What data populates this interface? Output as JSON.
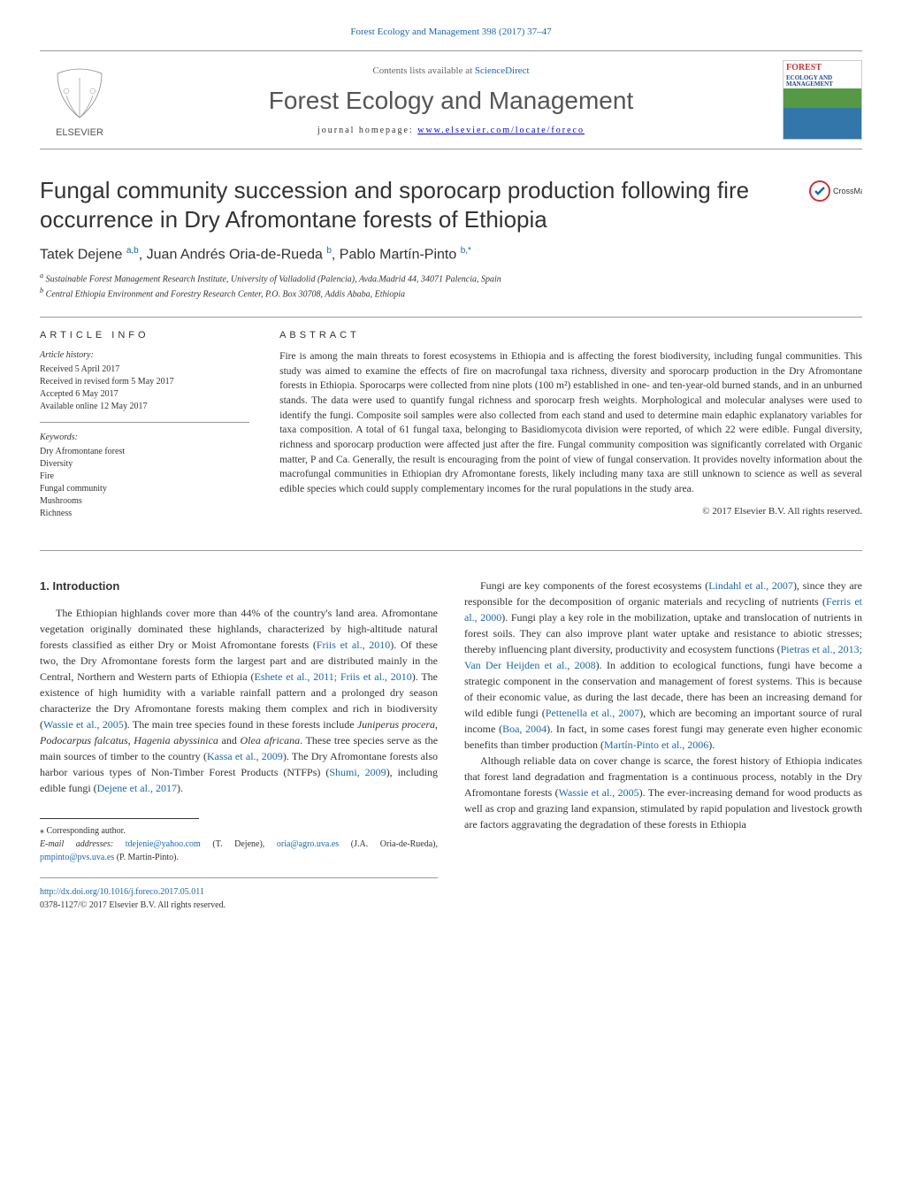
{
  "header": {
    "citation": "Forest Ecology and Management 398 (2017) 37–47",
    "contents_prefix": "Contents lists available at ",
    "contents_link": "ScienceDirect",
    "journal": "Forest Ecology and Management",
    "homepage_label": "journal homepage: ",
    "homepage_url": "www.elsevier.com/locate/foreco",
    "elsevier_text": "ELSEVIER",
    "cover_title": "FOREST",
    "cover_sub1": "ECOLOGY AND",
    "cover_sub2": "MANAGEMENT"
  },
  "crossmark": "CrossMark",
  "article": {
    "title": "Fungal community succession and sporocarp production following fire occurrence in Dry Afromontane forests of Ethiopia",
    "authors_html": "Tatek Dejene <sup>a,b</sup>, Juan Andrés Oria-de-Rueda <sup>b</sup>, Pablo Martín-Pinto <sup>b,*</sup>",
    "affiliations": [
      "a Sustainable Forest Management Research Institute, University of Valladolid (Palencia), Avda.Madrid 44, 34071 Palencia, Spain",
      "b Central Ethiopia Environment and Forestry Research Center, P.O. Box 30708, Addis Ababa, Ethiopia"
    ]
  },
  "info": {
    "heading_info": "ARTICLE INFO",
    "heading_abstract": "ABSTRACT",
    "history_label": "Article history:",
    "history": [
      "Received 5 April 2017",
      "Received in revised form 5 May 2017",
      "Accepted 6 May 2017",
      "Available online 12 May 2017"
    ],
    "keywords_label": "Keywords:",
    "keywords": [
      "Dry Afromontane forest",
      "Diversity",
      "Fire",
      "Fungal community",
      "Mushrooms",
      "Richness"
    ]
  },
  "abstract": {
    "text": "Fire is among the main threats to forest ecosystems in Ethiopia and is affecting the forest biodiversity, including fungal communities. This study was aimed to examine the effects of fire on macrofungal taxa richness, diversity and sporocarp production in the Dry Afromontane forests in Ethiopia. Sporocarps were collected from nine plots (100 m²) established in one- and ten-year-old burned stands, and in an unburned stands. The data were used to quantify fungal richness and sporocarp fresh weights. Morphological and molecular analyses were used to identify the fungi. Composite soil samples were also collected from each stand and used to determine main edaphic explanatory variables for taxa composition. A total of 61 fungal taxa, belonging to Basidiomycota division were reported, of which 22 were edible. Fungal diversity, richness and sporocarp production were affected just after the fire. Fungal community composition was significantly correlated with Organic matter, P and Ca. Generally, the result is encouraging from the point of view of fungal conservation. It provides novelty information about the macrofungal communities in Ethiopian dry Afromontane forests, likely including many taxa are still unknown to science as well as several edible species which could supply complementary incomes for the rural populations in the study area.",
    "copyright": "© 2017 Elsevier B.V. All rights reserved."
  },
  "body": {
    "section_title": "1. Introduction",
    "left_p1": "The Ethiopian highlands cover more than 44% of the country's land area. Afromontane vegetation originally dominated these highlands, characterized by high-altitude natural forests classified as either Dry or Moist Afromontane forests (Friis et al., 2010). Of these two, the Dry Afromontane forests form the largest part and are distributed mainly in the Central, Northern and Western parts of Ethiopia (Eshete et al., 2011; Friis et al., 2010). The existence of high humidity with a variable rainfall pattern and a prolonged dry season characterize the Dry Afromontane forests making them complex and rich in biodiversity (Wassie et al., 2005). The main tree species found in these forests include Juniperus procera, Podocarpus falcatus, Hagenia abyssinica and Olea africana. These tree species serve as the main sources of timber to the country (Kassa et al., 2009). The Dry Afromontane forests also harbor various types of Non-Timber Forest Products (NTFPs) (Shumi, 2009), including edible fungi (Dejene et al., 2017).",
    "right_p1": "Fungi are key components of the forest ecosystems (Lindahl et al., 2007), since they are responsible for the decomposition of organic materials and recycling of nutrients (Ferris et al., 2000). Fungi play a key role in the mobilization, uptake and translocation of nutrients in forest soils. They can also improve plant water uptake and resistance to abiotic stresses; thereby influencing plant diversity, productivity and ecosystem functions (Pietras et al., 2013; Van Der Heijden et al., 2008). In addition to ecological functions, fungi have become a strategic component in the conservation and management of forest systems. This is because of their economic value, as during the last decade, there has been an increasing demand for wild edible fungi (Pettenella et al., 2007), which are becoming an important source of rural income (Boa, 2004). In fact, in some cases forest fungi may generate even higher economic benefits than timber production (Martín-Pinto et al., 2006).",
    "right_p2": "Although reliable data on cover change is scarce, the forest history of Ethiopia indicates that forest land degradation and fragmentation is a continuous process, notably in the Dry Afromontane forests (Wassie et al., 2005). The ever-increasing demand for wood products as well as crop and grazing land expansion, stimulated by rapid population and livestock growth are factors aggravating the degradation of these forests in Ethiopia"
  },
  "footer": {
    "corresponding": "⁎ Corresponding author.",
    "emails_label": "E-mail addresses: ",
    "email1": "tdejenie@yahoo.com",
    "email1_name": " (T. Dejene), ",
    "email2": "oria@agro.uva.es",
    "email2_name": " (J.A. Oria-de-Rueda), ",
    "email3": "pmpinto@pvs.uva.es",
    "email3_name": " (P. Martín-Pinto).",
    "doi": "http://dx.doi.org/10.1016/j.foreco.2017.05.011",
    "issn": "0378-1127/© 2017 Elsevier B.V. All rights reserved."
  },
  "colors": {
    "link": "#1a67b3",
    "text": "#333333",
    "rule": "#999999"
  }
}
